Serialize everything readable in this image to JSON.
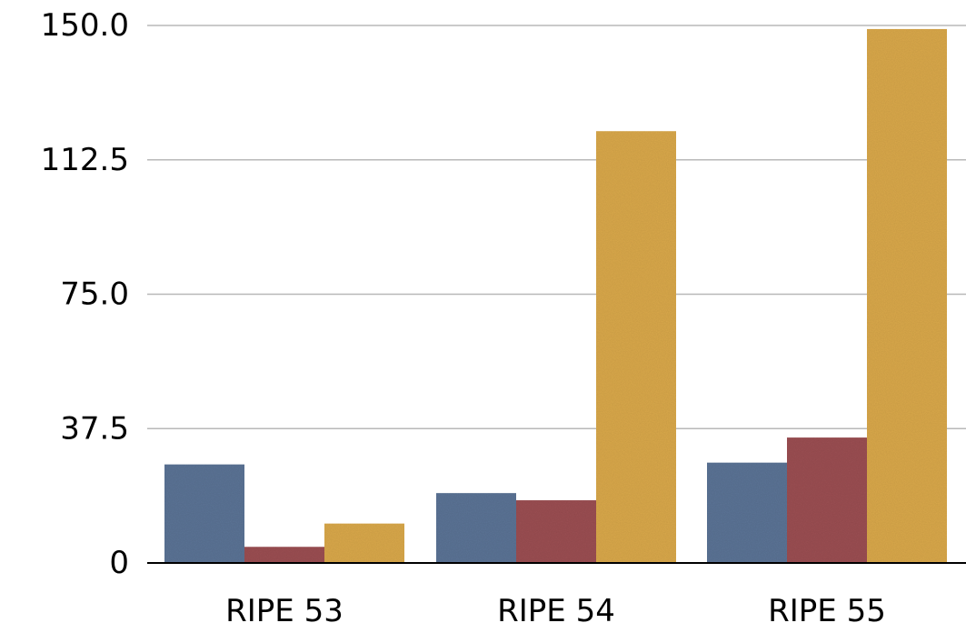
{
  "chart_data": {
    "type": "bar",
    "categories": [
      "RIPE 53",
      "RIPE 54",
      "RIPE 55"
    ],
    "series": [
      {
        "values": [
          27.5,
          19.5,
          28
        ]
      },
      {
        "values": [
          4.5,
          17.5,
          35
        ]
      },
      {
        "values": [
          11,
          120.5,
          149
        ]
      }
    ],
    "colors": [
      "#5b7395",
      "#9b4e52",
      "#d9a84a"
    ],
    "ylim": [
      0,
      150
    ],
    "yticks": [
      0,
      37.5,
      75,
      112.5,
      150
    ],
    "ytick_labels": [
      "0",
      "37.5",
      "75.0",
      "112.5",
      "150.0"
    ],
    "grid": true,
    "legend": false,
    "title": "",
    "xlabel": "",
    "ylabel": ""
  }
}
